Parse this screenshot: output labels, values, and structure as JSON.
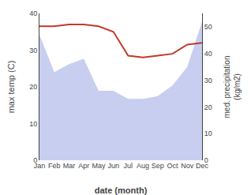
{
  "chart_data": {
    "type": "line",
    "categories": [
      "Jan",
      "Feb",
      "Mar",
      "Apr",
      "May",
      "Jun",
      "Jul",
      "Aug",
      "Sep",
      "Oct",
      "Nov",
      "Dec"
    ],
    "series": [
      {
        "type": "area",
        "axis": "y2",
        "color": "#aab4e8",
        "values": [
          47,
          33,
          36,
          38,
          26,
          26,
          23,
          23,
          24,
          28,
          35,
          52
        ]
      },
      {
        "type": "line",
        "color": "#c0392b",
        "values": [
          36.5,
          36.5,
          37.0,
          37.0,
          36.5,
          35.0,
          28.5,
          28.0,
          28.5,
          29.0,
          31.5,
          32.0
        ]
      }
    ],
    "xlabel": "date (month)",
    "ylabel": "max temp (C)",
    "y2label": "med. precipitation\n(kg/m2)",
    "ylim": [
      0,
      40
    ],
    "yticks": [
      0,
      10,
      20,
      30,
      40
    ],
    "y2lim": [
      0,
      55
    ],
    "y2ticks": [
      0,
      10,
      20,
      30,
      40,
      50
    ],
    "grid": false
  }
}
